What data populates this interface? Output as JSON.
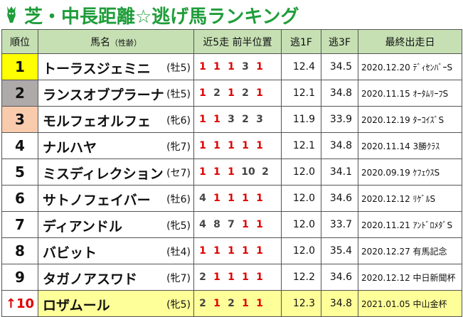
{
  "title": "芝・中長距離☆逃げ馬ランキング",
  "colors": {
    "title": "#1f9d3a",
    "header_bg": "#c6e0b4",
    "red": "#e00000",
    "rank1": "#ffff00",
    "rank2": "#aeaaaa",
    "rank3": "#f8cbad",
    "highlight": "#ffff99"
  },
  "columns": {
    "rank": "順位",
    "name": "馬名",
    "sexage": "（性齢）",
    "positions": "近5走 前半位置",
    "f3_front": "逃1F",
    "f3_back": "逃3F",
    "last_race": "最終出走日"
  },
  "rows": [
    {
      "rank": "1",
      "name": "トーラスジェミニ",
      "sexage": "(牡5)",
      "positions": [
        "1",
        "1",
        "1",
        "3",
        "1"
      ],
      "f1": "12.4",
      "f3": "34.5",
      "last": "2020.12.20 ﾃﾞｨｾﾝﾊﾞｰS"
    },
    {
      "rank": "2",
      "name": "ランスオブプラーナ",
      "sexage": "(牡5)",
      "positions": [
        "1",
        "2",
        "1",
        "2",
        "1"
      ],
      "f1": "12.1",
      "f3": "34.8",
      "last": "2020.11.15 ｵｰﾀﾑﾘｰﾌS"
    },
    {
      "rank": "3",
      "name": "モルフェオルフェ",
      "sexage": "(牝6)",
      "positions": [
        "1",
        "1",
        "3",
        "2",
        "3"
      ],
      "f1": "11.9",
      "f3": "33.9",
      "last": "2020.12.19 ﾀｰｺｲｽﾞS"
    },
    {
      "rank": "4",
      "name": "ナルハヤ",
      "sexage": "(牝7)",
      "positions": [
        "1",
        "1",
        "1",
        "1",
        "1"
      ],
      "f1": "12.1",
      "f3": "34.8",
      "last": "2020.11.14 3勝ｸﾗｽ"
    },
    {
      "rank": "5",
      "name": "ミスディレクション",
      "sexage": "(セ7)",
      "positions": [
        "1",
        "1",
        "1",
        "10",
        "2"
      ],
      "f1": "12.0",
      "f3": "34.1",
      "last": "2020.09.19 ｹﾌｪｳｽS"
    },
    {
      "rank": "6",
      "name": "サトノフェイバー",
      "sexage": "(牡6)",
      "positions": [
        "4",
        "1",
        "1",
        "1",
        "1"
      ],
      "f1": "12.0",
      "f3": "34.6",
      "last": "2020.12.12 ﾘｹﾞﾙS"
    },
    {
      "rank": "7",
      "name": "ディアンドル",
      "sexage": "(牝5)",
      "positions": [
        "4",
        "8",
        "7",
        "1",
        "1"
      ],
      "f1": "12.0",
      "f3": "33.7",
      "last": "2020.11.21 ｱﾝﾄﾞﾛﾒﾀﾞS"
    },
    {
      "rank": "8",
      "name": "バビット",
      "sexage": "(牡4)",
      "positions": [
        "1",
        "1",
        "1",
        "1",
        "1"
      ],
      "f1": "12.0",
      "f3": "35.4",
      "last": "2020.12.27 有馬記念"
    },
    {
      "rank": "9",
      "name": "タガノアスワド",
      "sexage": "(牝7)",
      "positions": [
        "2",
        "1",
        "1",
        "1",
        "1"
      ],
      "f1": "12.2",
      "f3": "34.6",
      "last": "2020.12.12 中日新聞杯"
    },
    {
      "rank": "↑10",
      "name": "ロザムール",
      "sexage": "(牝5)",
      "positions": [
        "2",
        "1",
        "2",
        "1",
        "1"
      ],
      "f1": "12.3",
      "f3": "34.8",
      "last": "2021.01.05 中山金杯"
    }
  ]
}
